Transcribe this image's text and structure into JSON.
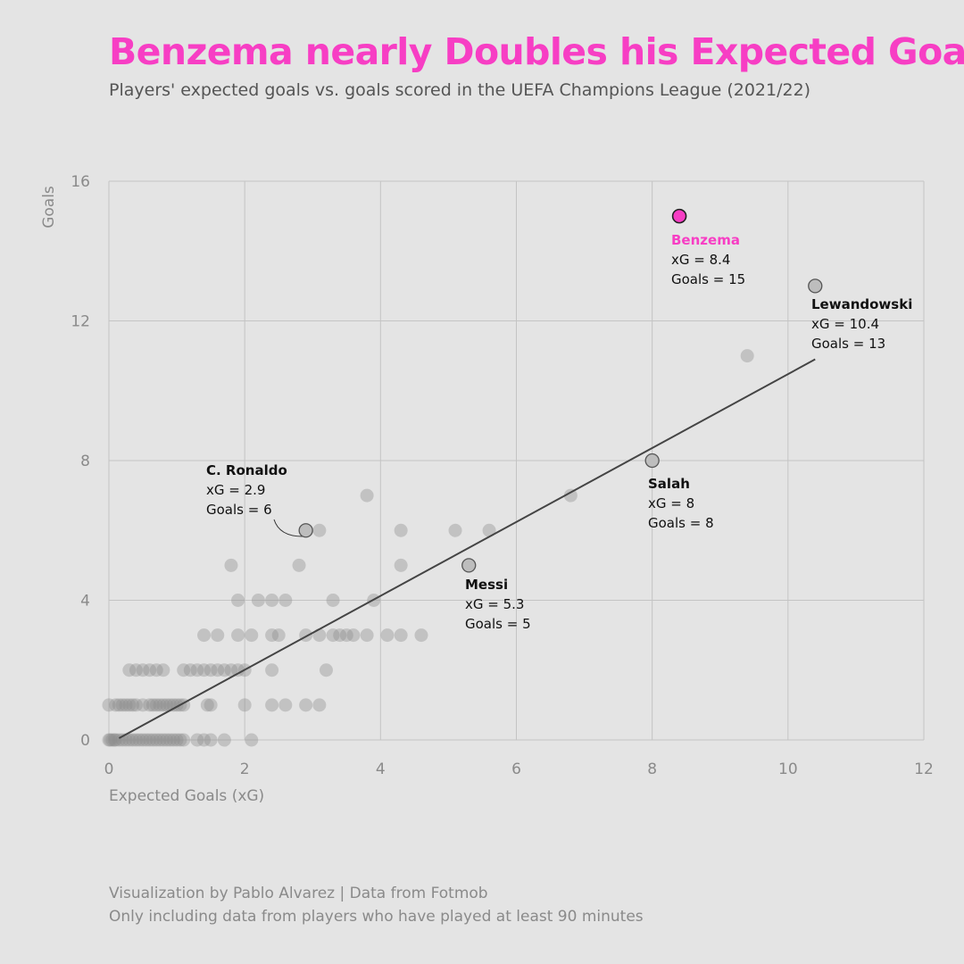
{
  "colors": {
    "background": "#e4e4e4",
    "accent": "#f73ec4",
    "points": "#8c8c8c",
    "trend": "#444444",
    "grid": "#c4c4c4"
  },
  "header": {
    "title": "Benzema nearly Doubles his Expected Goals",
    "subtitle": "Players' expected goals vs. goals scored in the UEFA Champions League (2021/22)"
  },
  "footer": {
    "credit": "Visualization by Pablo Alvarez | Data from Fotmob",
    "note": "Only including data from players who have played at least 90 minutes"
  },
  "chart_data": {
    "type": "scatter",
    "xlabel": "Expected Goals (xG)",
    "ylabel": "Goals",
    "xlim": [
      0,
      12
    ],
    "ylim": [
      0,
      16
    ],
    "xticks": [
      0,
      2,
      4,
      6,
      8,
      10,
      12
    ],
    "yticks": [
      0,
      4,
      8,
      12,
      16
    ],
    "grid": true,
    "trendline": {
      "x": [
        0.15,
        10.4
      ],
      "y": [
        0.05,
        10.9
      ]
    },
    "points": [
      [
        0.0,
        0
      ],
      [
        0.02,
        0
      ],
      [
        0.05,
        0
      ],
      [
        0.08,
        0
      ],
      [
        0.1,
        0
      ],
      [
        0.15,
        0
      ],
      [
        0.2,
        0
      ],
      [
        0.25,
        0
      ],
      [
        0.3,
        0
      ],
      [
        0.35,
        0
      ],
      [
        0.4,
        0
      ],
      [
        0.45,
        0
      ],
      [
        0.5,
        0
      ],
      [
        0.55,
        0
      ],
      [
        0.6,
        0
      ],
      [
        0.65,
        0
      ],
      [
        0.7,
        0
      ],
      [
        0.75,
        0
      ],
      [
        0.8,
        0
      ],
      [
        0.85,
        0
      ],
      [
        0.9,
        0
      ],
      [
        0.95,
        0
      ],
      [
        1.0,
        0
      ],
      [
        1.05,
        0
      ],
      [
        1.1,
        0
      ],
      [
        1.3,
        0
      ],
      [
        1.4,
        0
      ],
      [
        1.5,
        0
      ],
      [
        1.7,
        0
      ],
      [
        2.1,
        0
      ],
      [
        0.0,
        1
      ],
      [
        0.1,
        1
      ],
      [
        0.15,
        1
      ],
      [
        0.2,
        1
      ],
      [
        0.25,
        1
      ],
      [
        0.3,
        1
      ],
      [
        0.35,
        1
      ],
      [
        0.4,
        1
      ],
      [
        0.5,
        1
      ],
      [
        0.6,
        1
      ],
      [
        0.65,
        1
      ],
      [
        0.7,
        1
      ],
      [
        0.75,
        1
      ],
      [
        0.8,
        1
      ],
      [
        0.85,
        1
      ],
      [
        0.9,
        1
      ],
      [
        0.95,
        1
      ],
      [
        1.0,
        1
      ],
      [
        1.05,
        1
      ],
      [
        1.1,
        1
      ],
      [
        1.45,
        1
      ],
      [
        1.5,
        1
      ],
      [
        2.0,
        1
      ],
      [
        2.4,
        1
      ],
      [
        2.6,
        1
      ],
      [
        2.9,
        1
      ],
      [
        3.1,
        1
      ],
      [
        0.3,
        2
      ],
      [
        0.4,
        2
      ],
      [
        0.5,
        2
      ],
      [
        0.6,
        2
      ],
      [
        0.7,
        2
      ],
      [
        0.8,
        2
      ],
      [
        1.1,
        2
      ],
      [
        1.2,
        2
      ],
      [
        1.3,
        2
      ],
      [
        1.4,
        2
      ],
      [
        1.5,
        2
      ],
      [
        1.6,
        2
      ],
      [
        1.7,
        2
      ],
      [
        1.8,
        2
      ],
      [
        1.9,
        2
      ],
      [
        2.0,
        2
      ],
      [
        2.4,
        2
      ],
      [
        3.2,
        2
      ],
      [
        1.4,
        3
      ],
      [
        1.6,
        3
      ],
      [
        1.9,
        3
      ],
      [
        2.1,
        3
      ],
      [
        2.4,
        3
      ],
      [
        2.5,
        3
      ],
      [
        2.9,
        3
      ],
      [
        3.1,
        3
      ],
      [
        3.3,
        3
      ],
      [
        3.4,
        3
      ],
      [
        3.5,
        3
      ],
      [
        3.6,
        3
      ],
      [
        3.8,
        3
      ],
      [
        4.1,
        3
      ],
      [
        4.3,
        3
      ],
      [
        4.6,
        3
      ],
      [
        1.9,
        4
      ],
      [
        2.2,
        4
      ],
      [
        2.4,
        4
      ],
      [
        2.6,
        4
      ],
      [
        3.3,
        4
      ],
      [
        3.9,
        4
      ],
      [
        1.8,
        5
      ],
      [
        2.8,
        5
      ],
      [
        4.3,
        5
      ],
      [
        3.1,
        6
      ],
      [
        4.3,
        6
      ],
      [
        5.1,
        6
      ],
      [
        5.6,
        6
      ],
      [
        3.8,
        7
      ],
      [
        6.8,
        7
      ],
      [
        9.4,
        11
      ]
    ],
    "highlights": [
      {
        "name": "Benzema",
        "x": 8.4,
        "y": 15,
        "xg_label": "xG = 8.4",
        "goals_label": "Goals = 15",
        "color": "#f73ec4"
      },
      {
        "name": "Lewandowski",
        "x": 10.4,
        "y": 13,
        "xg_label": "xG = 10.4",
        "goals_label": "Goals = 13"
      },
      {
        "name": "Salah",
        "x": 8,
        "y": 8,
        "xg_label": "xG = 8",
        "goals_label": "Goals = 8"
      },
      {
        "name": "Messi",
        "x": 5.3,
        "y": 5,
        "xg_label": "xG = 5.3",
        "goals_label": "Goals = 5"
      },
      {
        "name": "C. Ronaldo",
        "x": 2.9,
        "y": 6,
        "xg_label": "xG = 2.9",
        "goals_label": "Goals = 6"
      }
    ]
  }
}
